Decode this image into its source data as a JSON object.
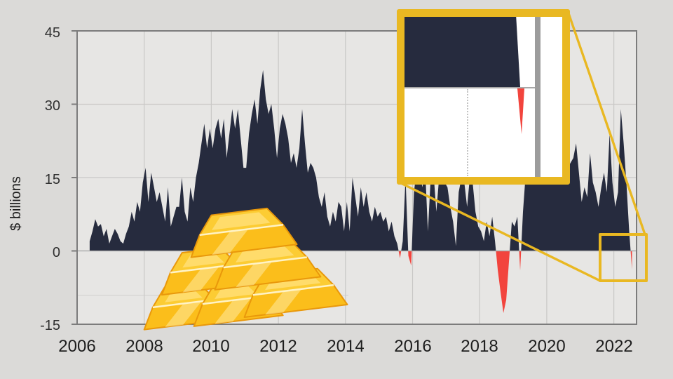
{
  "chart": {
    "y_axis": {
      "title": "$ billions",
      "labels": [
        "45",
        "30",
        "15",
        "0",
        "-15"
      ]
    },
    "x_axis": {
      "labels": [
        "2006",
        "2008",
        "2010",
        "2012",
        "2014",
        "2016",
        "2018",
        "2020",
        "2022"
      ]
    },
    "colors": {
      "background": "#DBDAD8",
      "plot_background": "#E7E6E4",
      "gridline": "#C9C8C6",
      "border": "#7C7C7C",
      "zero_line": "#A2A2A2",
      "positive": "#262B3E",
      "negative": "#F2443D",
      "accent_gold": "#E9B822"
    }
  },
  "chart_data": {
    "type": "area",
    "title": "",
    "xlabel": "",
    "ylabel": "$ billions",
    "ylim": [
      -15,
      45
    ],
    "xticks": [
      2006,
      2008,
      2010,
      2012,
      2014,
      2016,
      2018,
      2020,
      2022
    ],
    "yticks": [
      45,
      30,
      15,
      0,
      -15
    ],
    "grid": true,
    "frequency": "monthly",
    "x_start": "2006-05",
    "x_end": "2022-07",
    "negative_values_highlighted": true,
    "values": [
      2,
      4,
      6.5,
      5,
      5.5,
      3,
      4.5,
      1.5,
      3,
      4.5,
      3.5,
      2,
      1.5,
      3.5,
      5,
      8,
      6,
      10,
      8,
      14,
      17,
      10,
      16,
      13,
      10,
      12,
      9,
      6,
      13,
      5,
      7,
      9,
      9,
      15,
      8,
      6,
      13,
      10,
      15,
      18,
      22,
      26,
      21,
      25,
      21,
      25,
      27,
      23,
      27,
      19,
      24,
      29,
      25,
      29,
      23,
      17,
      17,
      24,
      28,
      31,
      26,
      33,
      37,
      31,
      28,
      30,
      25,
      19,
      25,
      28,
      26,
      23,
      18,
      20,
      17,
      21,
      29,
      22,
      16,
      18,
      17,
      15,
      11,
      9,
      12,
      7,
      5,
      8,
      6,
      10,
      9,
      4,
      10,
      4,
      15,
      11,
      7,
      13,
      9,
      12,
      8,
      6,
      9,
      7,
      8,
      6,
      7,
      4,
      6,
      3,
      1.5,
      -1.5,
      2,
      15,
      -1,
      -3,
      12,
      17,
      16,
      13,
      17,
      4,
      15,
      16,
      8,
      15,
      16,
      14,
      13,
      9,
      6,
      1,
      12,
      15,
      14,
      9,
      15,
      14,
      8,
      5,
      4,
      2,
      6,
      3,
      7,
      2,
      -4,
      -8.5,
      -12.7,
      -10,
      -2,
      6,
      5,
      7,
      -4,
      8,
      16,
      18,
      15,
      17,
      16,
      18,
      15,
      17,
      16,
      18,
      15,
      17,
      16,
      18,
      15,
      17,
      18,
      19,
      22,
      16,
      10,
      13,
      11,
      20,
      14,
      12,
      9,
      13,
      16,
      12,
      24,
      14,
      9,
      12,
      29,
      22,
      14,
      4,
      -3.8
    ]
  },
  "magnifier": {
    "magnified_region_x": [
      "2022-03",
      "2022-08"
    ],
    "magnified_region_y": [
      -5,
      10
    ],
    "border_color": "#E9B822",
    "inset_background": "#FFFFFF"
  },
  "gold_bars": {
    "face": "#FBBE1B",
    "top": "#FCCC33",
    "gloss": "#FFE9A0",
    "top_gloss": "#FFDE76",
    "edge": "#FFF3C6",
    "outline": "#E9980B"
  }
}
